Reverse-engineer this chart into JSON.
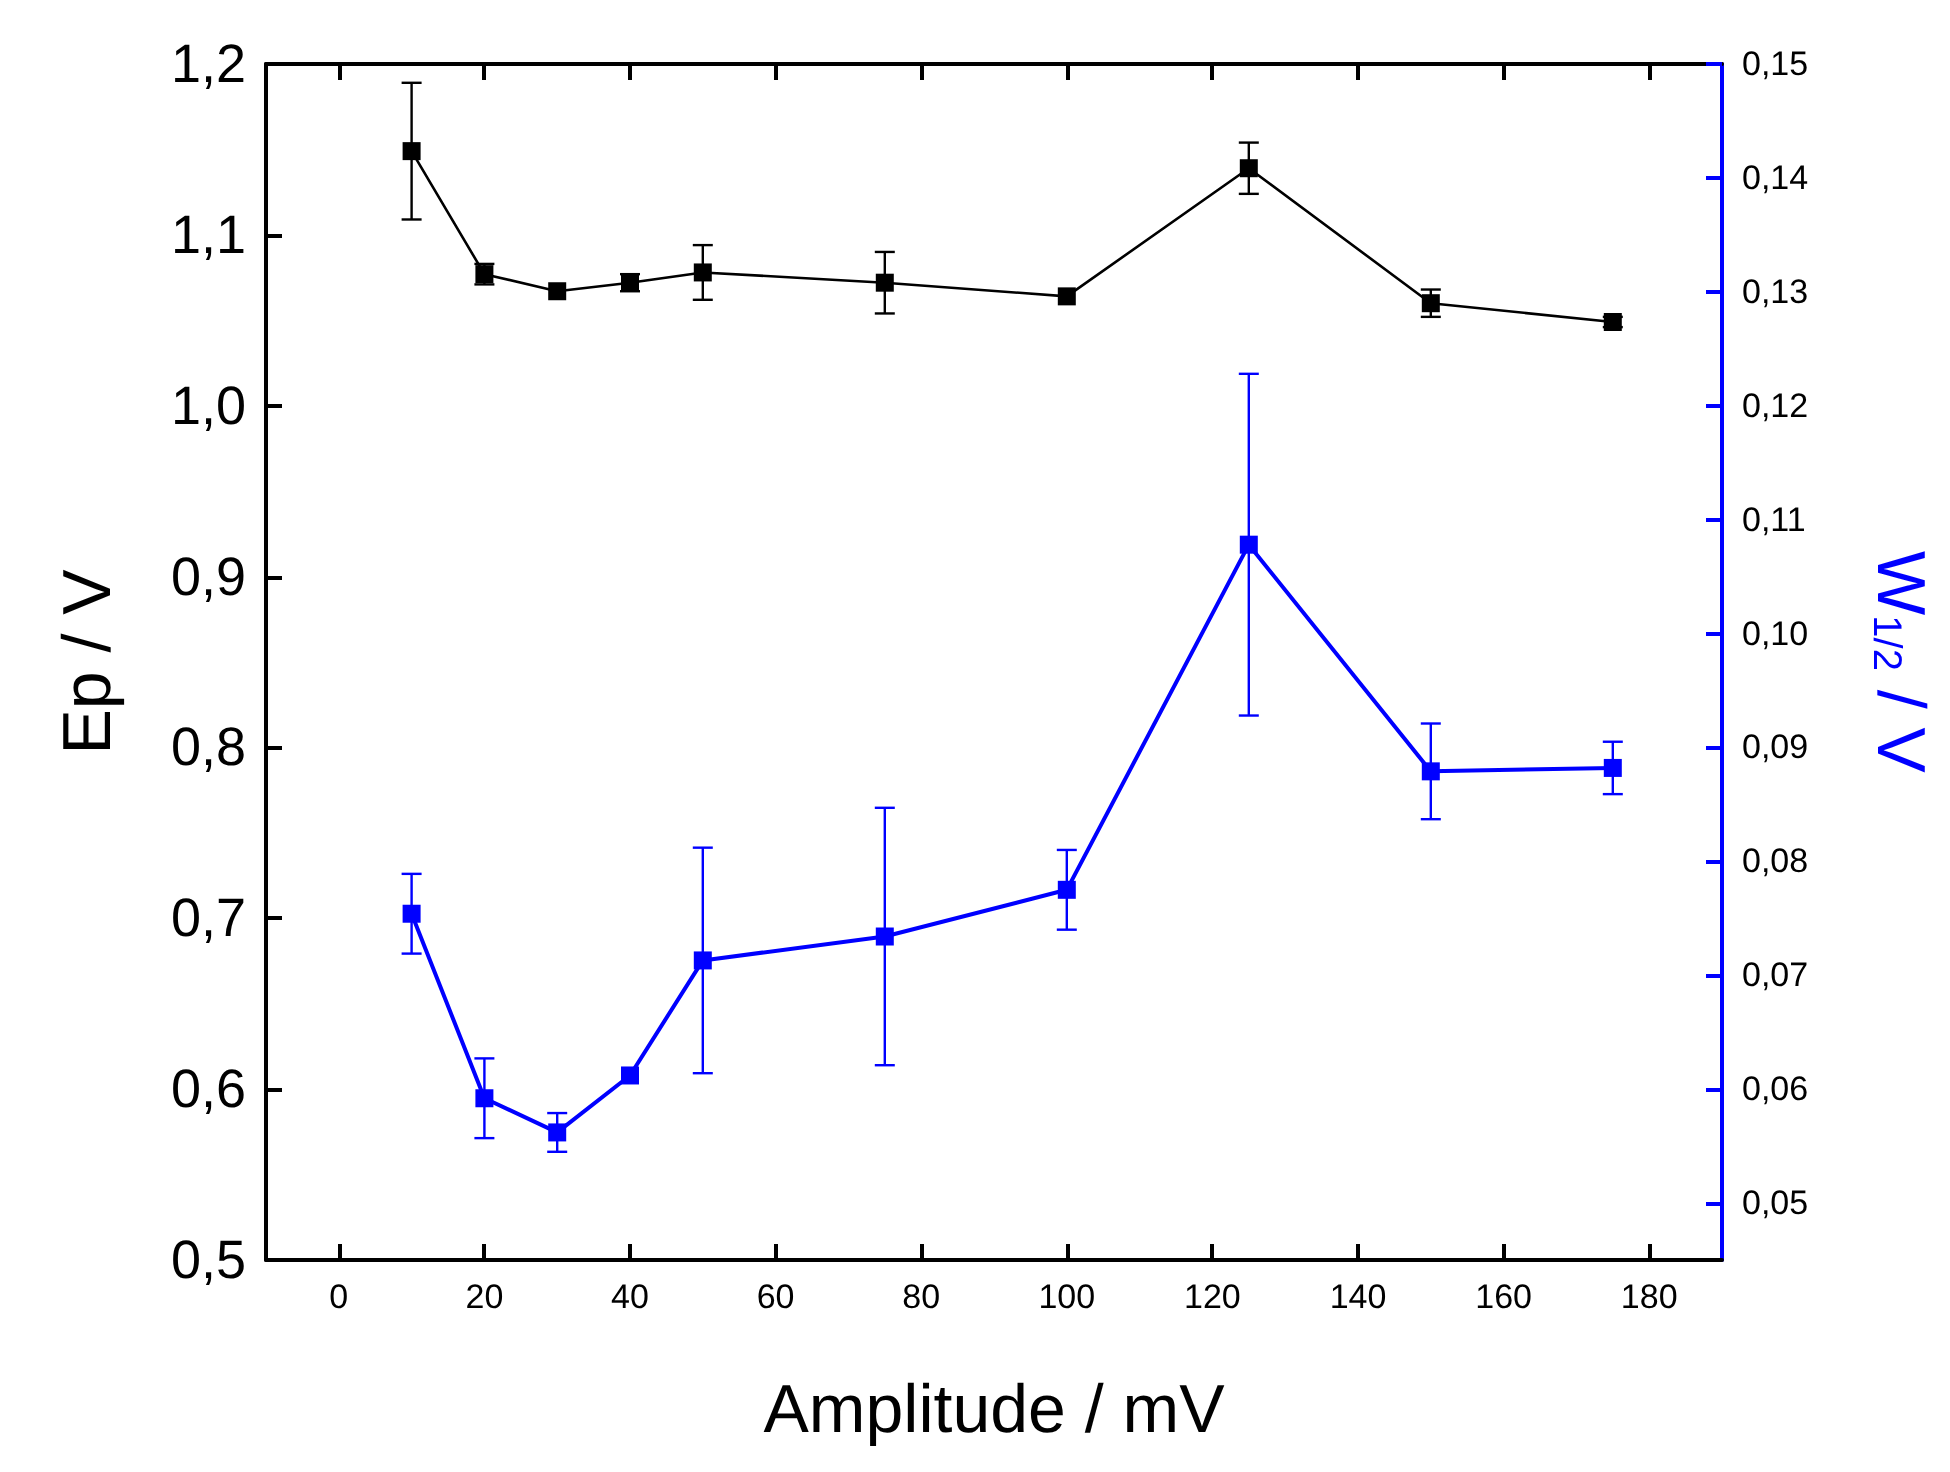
{
  "chart_data": {
    "type": "line",
    "xlabel": "Amplitude / mV",
    "ylabel": "Ep / V",
    "y2label": "W$_{1/2}$ / V",
    "x": [
      10,
      20,
      30,
      40,
      50,
      75,
      100,
      125,
      150,
      175
    ],
    "series": [
      {
        "color": "#000000",
        "values": [
          1.149,
          1.077,
          1.067,
          1.072,
          1.078,
          1.072,
          1.064,
          1.139,
          1.06,
          1.049
        ],
        "errors": [
          0.04,
          0.006,
          null,
          0.005,
          0.016,
          0.018,
          null,
          0.015,
          0.008,
          0.003
        ]
      },
      {
        "color": "#0000ff",
        "axis": "y2",
        "values": [
          0.0754,
          0.0592,
          0.0562,
          0.0612,
          0.0713,
          0.0734,
          0.0775,
          0.1078,
          0.0879,
          0.0882
        ],
        "errors": [
          0.0035,
          0.0035,
          0.0017,
          null,
          0.0099,
          0.0113,
          0.0035,
          0.015,
          0.0042,
          0.0023
        ]
      }
    ],
    "xlim": [
      -10,
      190
    ],
    "xticks": [
      0,
      20,
      40,
      60,
      80,
      100,
      120,
      140,
      160,
      180
    ],
    "ylim": [
      0.5,
      1.2
    ],
    "yticks": [
      {
        "value": 0.5,
        "label": "0,5"
      },
      {
        "value": 0.6,
        "label": "0,6"
      },
      {
        "value": 0.7,
        "label": "0,7"
      },
      {
        "value": 0.8,
        "label": "0,8"
      },
      {
        "value": 0.9,
        "label": "0,9"
      },
      {
        "value": 1.0,
        "label": "1,0"
      },
      {
        "value": 1.1,
        "label": "1,1"
      },
      {
        "value": 1.2,
        "label": "1,2"
      }
    ],
    "y2lim": [
      0.045,
      0.15
    ],
    "y2ticks": [
      {
        "value": 0.05,
        "label": "0,05"
      },
      {
        "value": 0.06,
        "label": "0,06"
      },
      {
        "value": 0.07,
        "label": "0,07"
      },
      {
        "value": 0.08,
        "label": "0,08"
      },
      {
        "value": 0.09,
        "label": "0,09"
      },
      {
        "value": 0.1,
        "label": "0,10"
      },
      {
        "value": 0.11,
        "label": "0,11"
      },
      {
        "value": 0.12,
        "label": "0,12"
      },
      {
        "value": 0.13,
        "label": "0,13"
      },
      {
        "value": 0.14,
        "label": "0,14"
      },
      {
        "value": 0.15,
        "label": "0,15"
      }
    ],
    "grid": false,
    "marker": "square",
    "line_style": "solid"
  }
}
